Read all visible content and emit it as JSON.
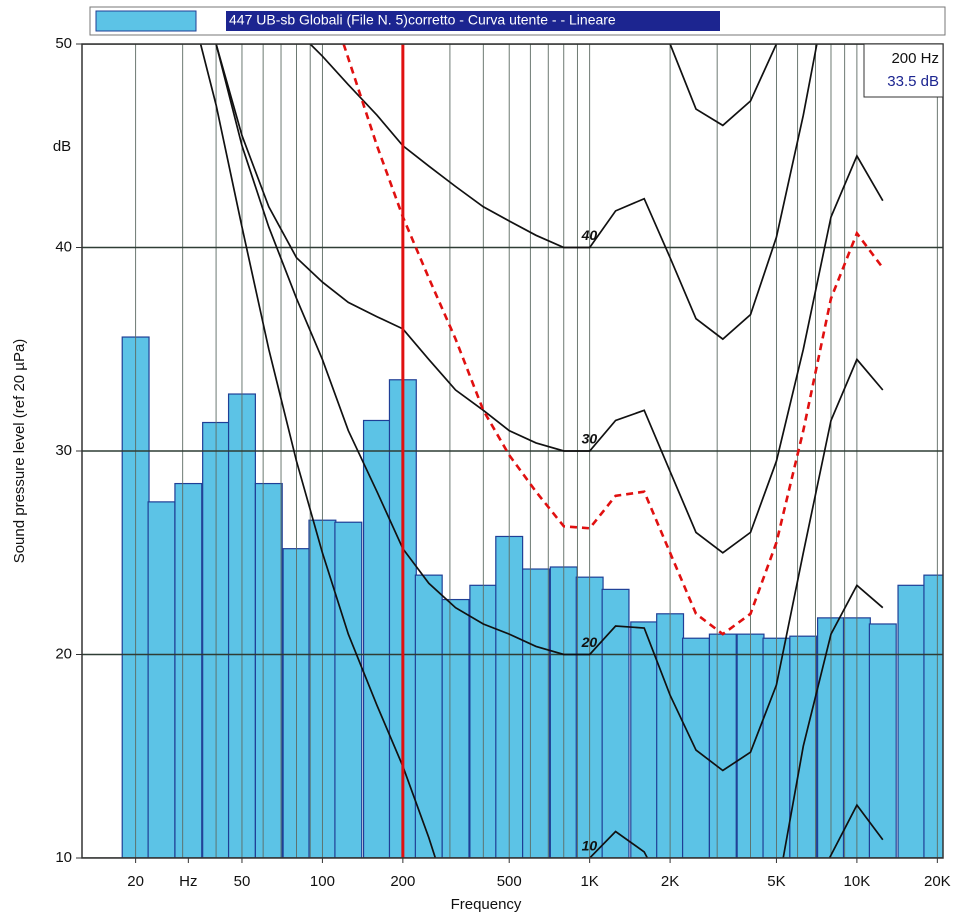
{
  "chart_data": {
    "type": "bar",
    "legend_label": "447 UB-sb Globali  (File N. 5)corretto - Curva utente -  - Lineare",
    "ylabel": "Sound pressure level (ref 20 µPa)",
    "yunit": "dB",
    "xlabel": "Frequency",
    "log_x": true,
    "xlim": [
      12.6,
      21000
    ],
    "ylim": [
      10,
      50
    ],
    "yticks": [
      10,
      20,
      30,
      40,
      50
    ],
    "xticks": [
      20,
      {
        "value": 31.5,
        "label": "Hz"
      },
      50,
      100,
      200,
      500,
      {
        "value": 1000,
        "label": "1K"
      },
      {
        "value": 2000,
        "label": "2K"
      },
      {
        "value": 5000,
        "label": "5K"
      },
      {
        "value": 10000,
        "label": "10K"
      },
      {
        "value": 20000,
        "label": "20K"
      }
    ],
    "xgrid": [
      20,
      30,
      40,
      50,
      60,
      70,
      80,
      90,
      100,
      200,
      300,
      400,
      500,
      600,
      700,
      800,
      900,
      1000,
      2000,
      3000,
      4000,
      5000,
      6000,
      7000,
      8000,
      9000,
      10000,
      20000
    ],
    "grid": true,
    "bar_color": "#5cc3e6",
    "bar_edge": "#1f3f96",
    "x": [
      20,
      25,
      31.5,
      40,
      50,
      63,
      80,
      100,
      125,
      160,
      200,
      250,
      315,
      400,
      500,
      630,
      800,
      1000,
      1250,
      1600,
      2000,
      2500,
      3150,
      4000,
      5000,
      6300,
      8000,
      10000,
      12500,
      16000,
      20000
    ],
    "values": [
      35.6,
      27.5,
      28.4,
      31.4,
      32.8,
      28.4,
      25.2,
      26.6,
      26.5,
      31.5,
      33.5,
      23.9,
      22.7,
      23.4,
      25.8,
      24.2,
      24.3,
      23.8,
      23.2,
      21.6,
      22.0,
      20.8,
      21.0,
      21.0,
      20.8,
      20.9,
      21.8,
      21.8,
      21.5,
      23.4,
      23.9
    ],
    "cursor": {
      "x": 200,
      "color": "#e01010",
      "freq_label": "200 Hz",
      "level_label": "33.5 dB"
    },
    "series": [
      {
        "name": "10",
        "color": "#111111",
        "x": [
          35,
          40,
          50,
          63,
          80,
          100,
          125,
          160,
          200,
          250,
          280,
          500,
          900,
          1000,
          1250,
          1600,
          1800,
          3000,
          5300,
          6300,
          8000,
          10000,
          12500
        ],
        "values": [
          50,
          47,
          41,
          35,
          29.5,
          25,
          21,
          17.5,
          14.5,
          11,
          9,
          null,
          9,
          10,
          11.3,
          10.3,
          9,
          null,
          10,
          15.5,
          21,
          23.4,
          22.3
        ]
      },
      {
        "name": "20",
        "color": "#111111",
        "x": [
          40,
          50,
          63,
          80,
          100,
          125,
          160,
          200,
          250,
          315,
          400,
          500,
          630,
          800,
          1000,
          1250,
          1600,
          2000,
          2500,
          3150,
          4000,
          5000,
          6300,
          8000,
          10000,
          12500
        ],
        "values": [
          50,
          45,
          41,
          37.5,
          34.5,
          31,
          28,
          25.2,
          23.5,
          22.3,
          21.5,
          21,
          20.4,
          20,
          20,
          21.4,
          21.3,
          18,
          15.3,
          14.3,
          15.2,
          18.5,
          25,
          31.5,
          34.5,
          33
        ]
      },
      {
        "name": "30",
        "color": "#111111",
        "x": [
          40,
          50,
          63,
          80,
          100,
          125,
          160,
          200,
          250,
          315,
          400,
          500,
          630,
          800,
          1000,
          1250,
          1600,
          2000,
          2500,
          3150,
          4000,
          5000,
          6300,
          8000,
          10000,
          12500
        ],
        "values": [
          50,
          45.5,
          42,
          39.5,
          38.3,
          37.3,
          36.6,
          36,
          34.5,
          33,
          32,
          31,
          30.4,
          30,
          30,
          31.5,
          32,
          29,
          26,
          25,
          26,
          29.5,
          35,
          41.5,
          44.5,
          42.3
        ]
      },
      {
        "name": "40",
        "color": "#111111",
        "x": [
          90,
          100,
          125,
          160,
          200,
          250,
          315,
          400,
          500,
          630,
          800,
          1000,
          1250,
          1600,
          2000,
          2500,
          3150,
          4000,
          5000,
          6300,
          7200
        ],
        "values": [
          50,
          49.4,
          48,
          46.5,
          45,
          44,
          43,
          42,
          41.3,
          40.6,
          40,
          40,
          41.8,
          42.4,
          39.5,
          36.5,
          35.5,
          36.7,
          40.5,
          46.5,
          50.5
        ]
      },
      {
        "color": "#111111",
        "x": [
          2000,
          2500,
          3150,
          4000,
          5000
        ],
        "values": [
          50,
          46.8,
          46,
          47.2,
          50
        ]
      },
      {
        "color": "#111111",
        "x": [
          7900,
          10000,
          12500
        ],
        "values": [
          10,
          12.6,
          10.9
        ]
      },
      {
        "color": "#e01010",
        "dashed": true,
        "x": [
          120,
          160,
          200,
          250,
          315,
          400,
          500,
          630,
          800,
          1000,
          1250,
          1600,
          2000,
          2500,
          3150,
          4000,
          5000,
          6300,
          8000,
          10000,
          12500
        ],
        "values": [
          50,
          45,
          41.5,
          38.5,
          35.5,
          32,
          29.8,
          28,
          26.3,
          26.2,
          27.8,
          28,
          25,
          22,
          21,
          22,
          25.5,
          31,
          37.5,
          40.7,
          39
        ]
      }
    ]
  }
}
